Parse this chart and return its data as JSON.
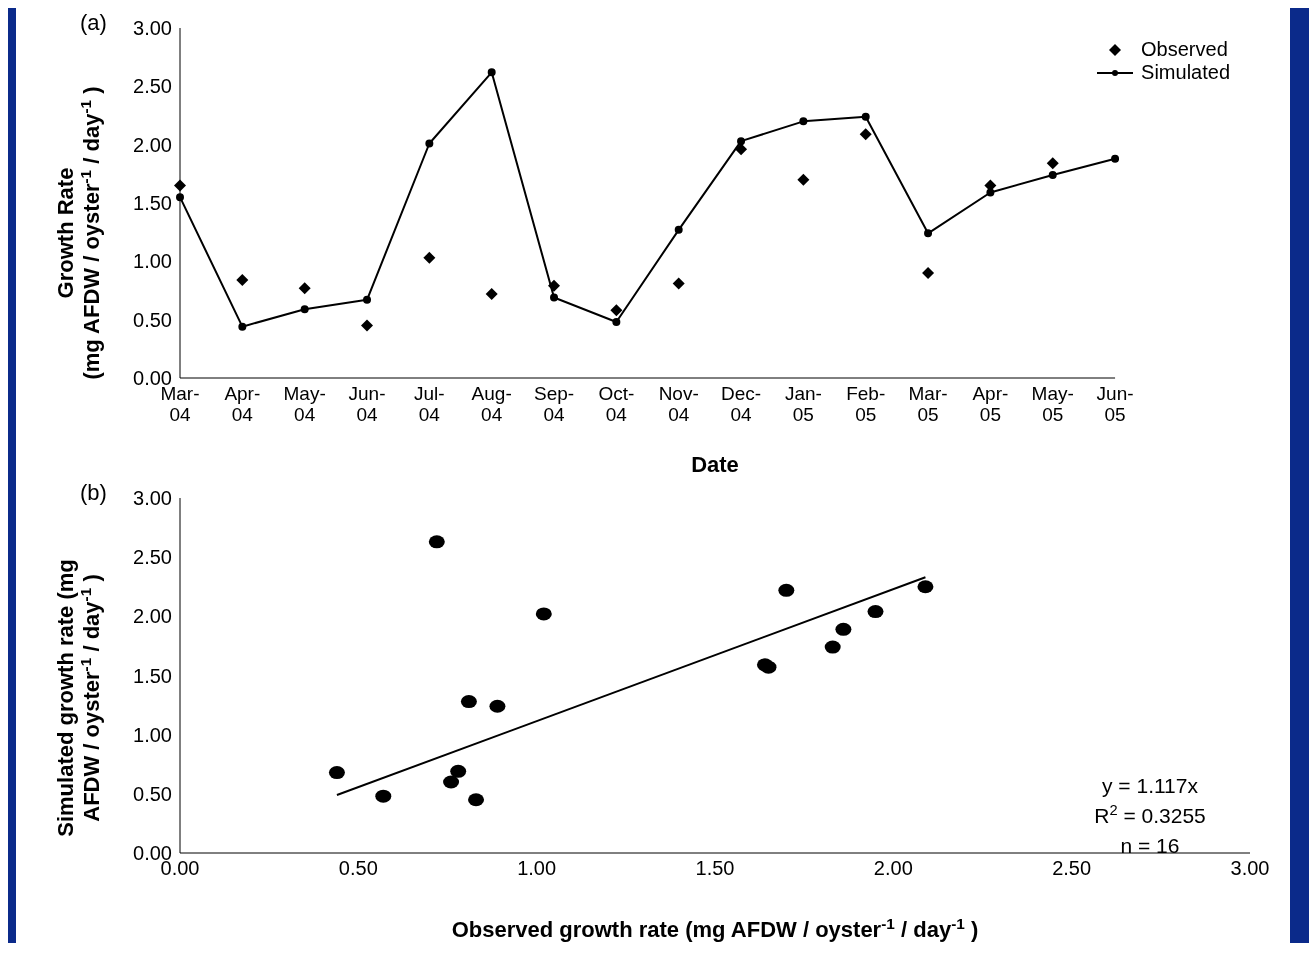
{
  "chart_data": [
    {
      "type": "line",
      "title": "(a)",
      "xlabel": "Date",
      "ylabel": "Growth Rate\n(mg AFDW / oyster$^{-1}$ / day$^{-1}$)",
      "categories": [
        "Mar-04",
        "Apr-04",
        "May-04",
        "Jun-04",
        "Jul-04",
        "Aug-04",
        "Sep-04",
        "Oct-04",
        "Nov-04",
        "Dec-04",
        "Jan-05",
        "Feb-05",
        "Mar-05",
        "Apr-05",
        "May-05",
        "Jun-05"
      ],
      "series": [
        {
          "name": "Observed",
          "type": "scatter",
          "marker": "diamond",
          "color": "#000000",
          "values": [
            1.65,
            0.84,
            0.77,
            0.45,
            1.03,
            0.72,
            0.79,
            0.58,
            0.81,
            1.96,
            1.7,
            2.09,
            0.9,
            1.65,
            1.84,
            null
          ]
        },
        {
          "name": "Simulated",
          "marker": "circle",
          "color": "#000000",
          "values": [
            1.55,
            0.44,
            0.59,
            0.67,
            2.01,
            2.62,
            0.69,
            0.48,
            1.27,
            2.03,
            2.2,
            2.24,
            1.24,
            1.59,
            1.74,
            1.88
          ]
        }
      ],
      "ylim": [
        0,
        3
      ],
      "yticks": [
        {
          "value": 0,
          "label": "0.00"
        },
        {
          "value": 0.5,
          "label": "0.50"
        },
        {
          "value": 1,
          "label": "1.00"
        },
        {
          "value": 1.5,
          "label": "1.50"
        },
        {
          "value": 2,
          "label": "2.00"
        },
        {
          "value": 2.5,
          "label": "2.50"
        },
        {
          "value": 3,
          "label": "3.00"
        }
      ],
      "legend": "top right",
      "grid": false
    },
    {
      "type": "scatter",
      "title": "(b)",
      "xlabel": "Observed growth rate (mg AFDW / oyster$^{-1}$ / day$^{-1}$)",
      "ylabel": "Simulated growth rate (mg\nAFDW / oyster$^{-1}$ / day$^{-1}$)",
      "series": [
        {
          "marker": "circle",
          "color": "#000000",
          "x": [
            0.44,
            0.57,
            0.72,
            0.76,
            0.78,
            0.81,
            0.83,
            0.89,
            1.02,
            1.64,
            1.65,
            1.7,
            1.83,
            1.86,
            1.95,
            2.09
          ],
          "values": [
            0.68,
            0.48,
            2.63,
            0.6,
            0.69,
            1.28,
            0.45,
            1.24,
            2.02,
            1.59,
            1.57,
            2.22,
            1.74,
            1.89,
            2.04,
            2.25
          ]
        },
        {
          "type": "line",
          "marker": "none",
          "color": "#000000",
          "x": [
            0.44,
            2.09
          ],
          "values": [
            0.49,
            2.33
          ]
        }
      ],
      "xlim": [
        0,
        3
      ],
      "xticks": [
        {
          "value": 0,
          "label": "0.00"
        },
        {
          "value": 0.5,
          "label": "0.50"
        },
        {
          "value": 1,
          "label": "1.00"
        },
        {
          "value": 1.5,
          "label": "1.50"
        },
        {
          "value": 2,
          "label": "2.00"
        },
        {
          "value": 2.5,
          "label": "2.50"
        },
        {
          "value": 3,
          "label": "3.00"
        }
      ],
      "ylim": [
        0,
        3
      ],
      "yticks": [
        {
          "value": 0,
          "label": "0.00"
        },
        {
          "value": 0.5,
          "label": "0.50"
        },
        {
          "value": 1,
          "label": "1.00"
        },
        {
          "value": 1.5,
          "label": "1.50"
        },
        {
          "value": 2,
          "label": "2.00"
        },
        {
          "value": 2.5,
          "label": "2.50"
        },
        {
          "value": 3,
          "label": "3.00"
        }
      ],
      "annotations": [
        "y = 1.117x",
        "R$^{2}$ = 0.3255",
        "n = 16"
      ],
      "legend": false,
      "grid": false
    }
  ]
}
